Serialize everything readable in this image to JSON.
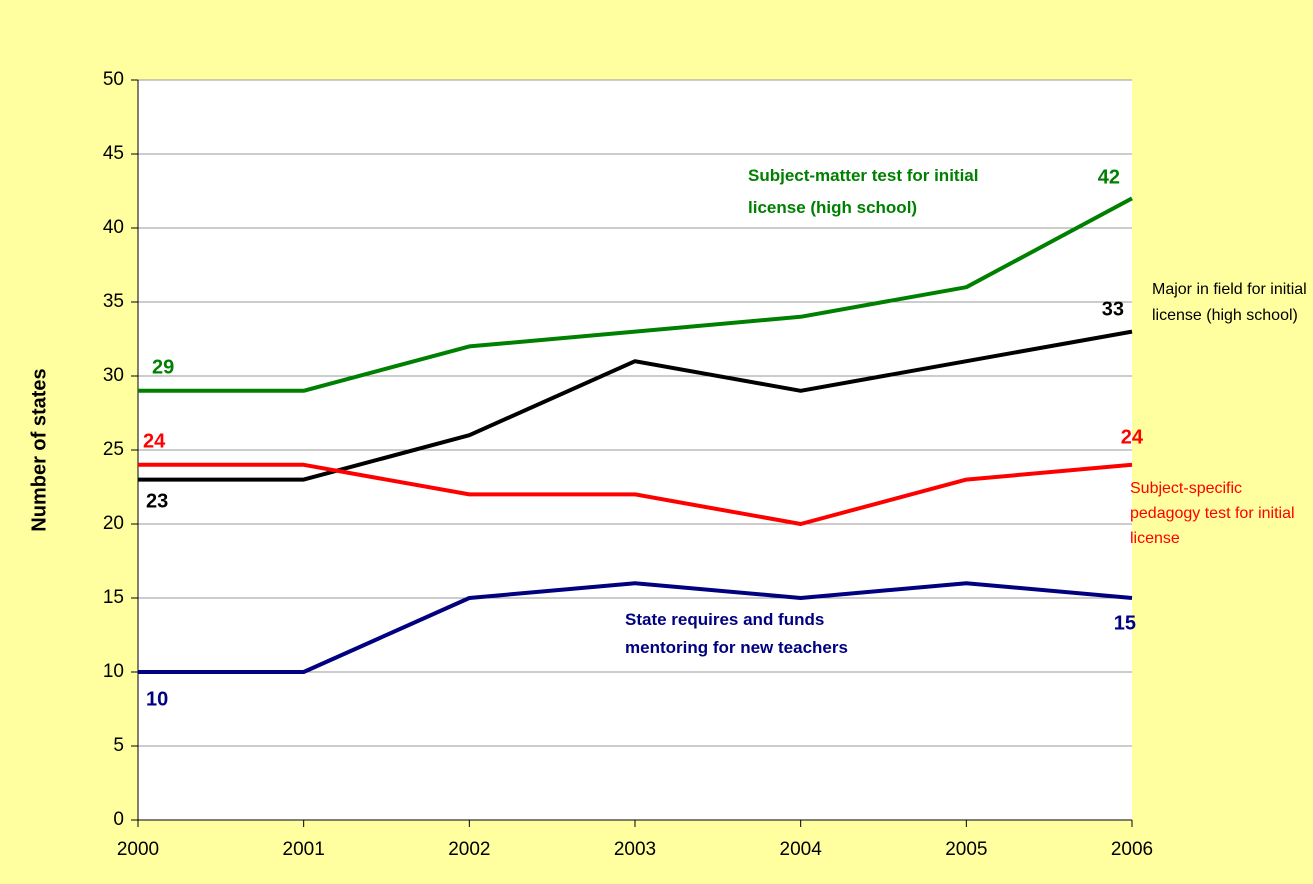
{
  "chart_data": {
    "type": "line",
    "y_label": "Number of states",
    "categories": [
      "2000",
      "2001",
      "2002",
      "2003",
      "2004",
      "2005",
      "2006"
    ],
    "series": [
      {
        "name": "Subject-matter test for initial license (high school)",
        "color": "#008000",
        "values": [
          29,
          29,
          32,
          33,
          34,
          36,
          42
        ]
      },
      {
        "name": "Major in field for initial license (high school)",
        "color": "#000000",
        "values": [
          23,
          23,
          26,
          31,
          29,
          31,
          33
        ]
      },
      {
        "name": "Subject-specific pedagogy test for initial license",
        "color": "#ff0000",
        "values": [
          24,
          24,
          22,
          22,
          20,
          23,
          24
        ]
      },
      {
        "name": "State requires and funds mentoring for new teachers",
        "color": "#000080",
        "values": [
          10,
          10,
          15,
          16,
          15,
          16,
          15
        ]
      }
    ],
    "ylim": [
      0,
      50
    ],
    "yticks": [
      0,
      5,
      10,
      15,
      20,
      25,
      30,
      35,
      40,
      45,
      50
    ],
    "grid": true
  }
}
